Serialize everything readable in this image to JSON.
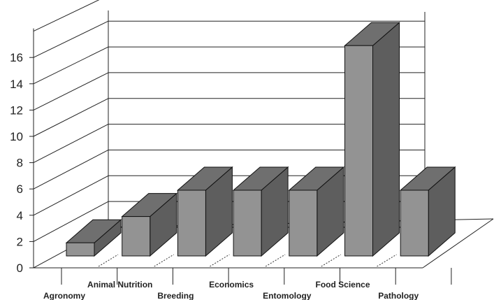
{
  "chart_data": {
    "type": "bar",
    "style": "3d",
    "categories": [
      "Agronomy",
      "Animal Nutrition",
      "Breeding",
      "Economics",
      "Entomology",
      "Food Science",
      "Pathology"
    ],
    "values": [
      1,
      3,
      5,
      5,
      5,
      16,
      5
    ],
    "yticks": [
      "0",
      "2",
      "4",
      "6",
      "8",
      "10",
      "12",
      "14",
      "16"
    ],
    "ylim": [
      0,
      18
    ],
    "grid": true,
    "title": "",
    "xlabel": "",
    "ylabel": "",
    "colors": {
      "front": "#939393",
      "side": "#5e5e5e",
      "top": "#6f6f6f",
      "stroke": "#111111"
    }
  }
}
